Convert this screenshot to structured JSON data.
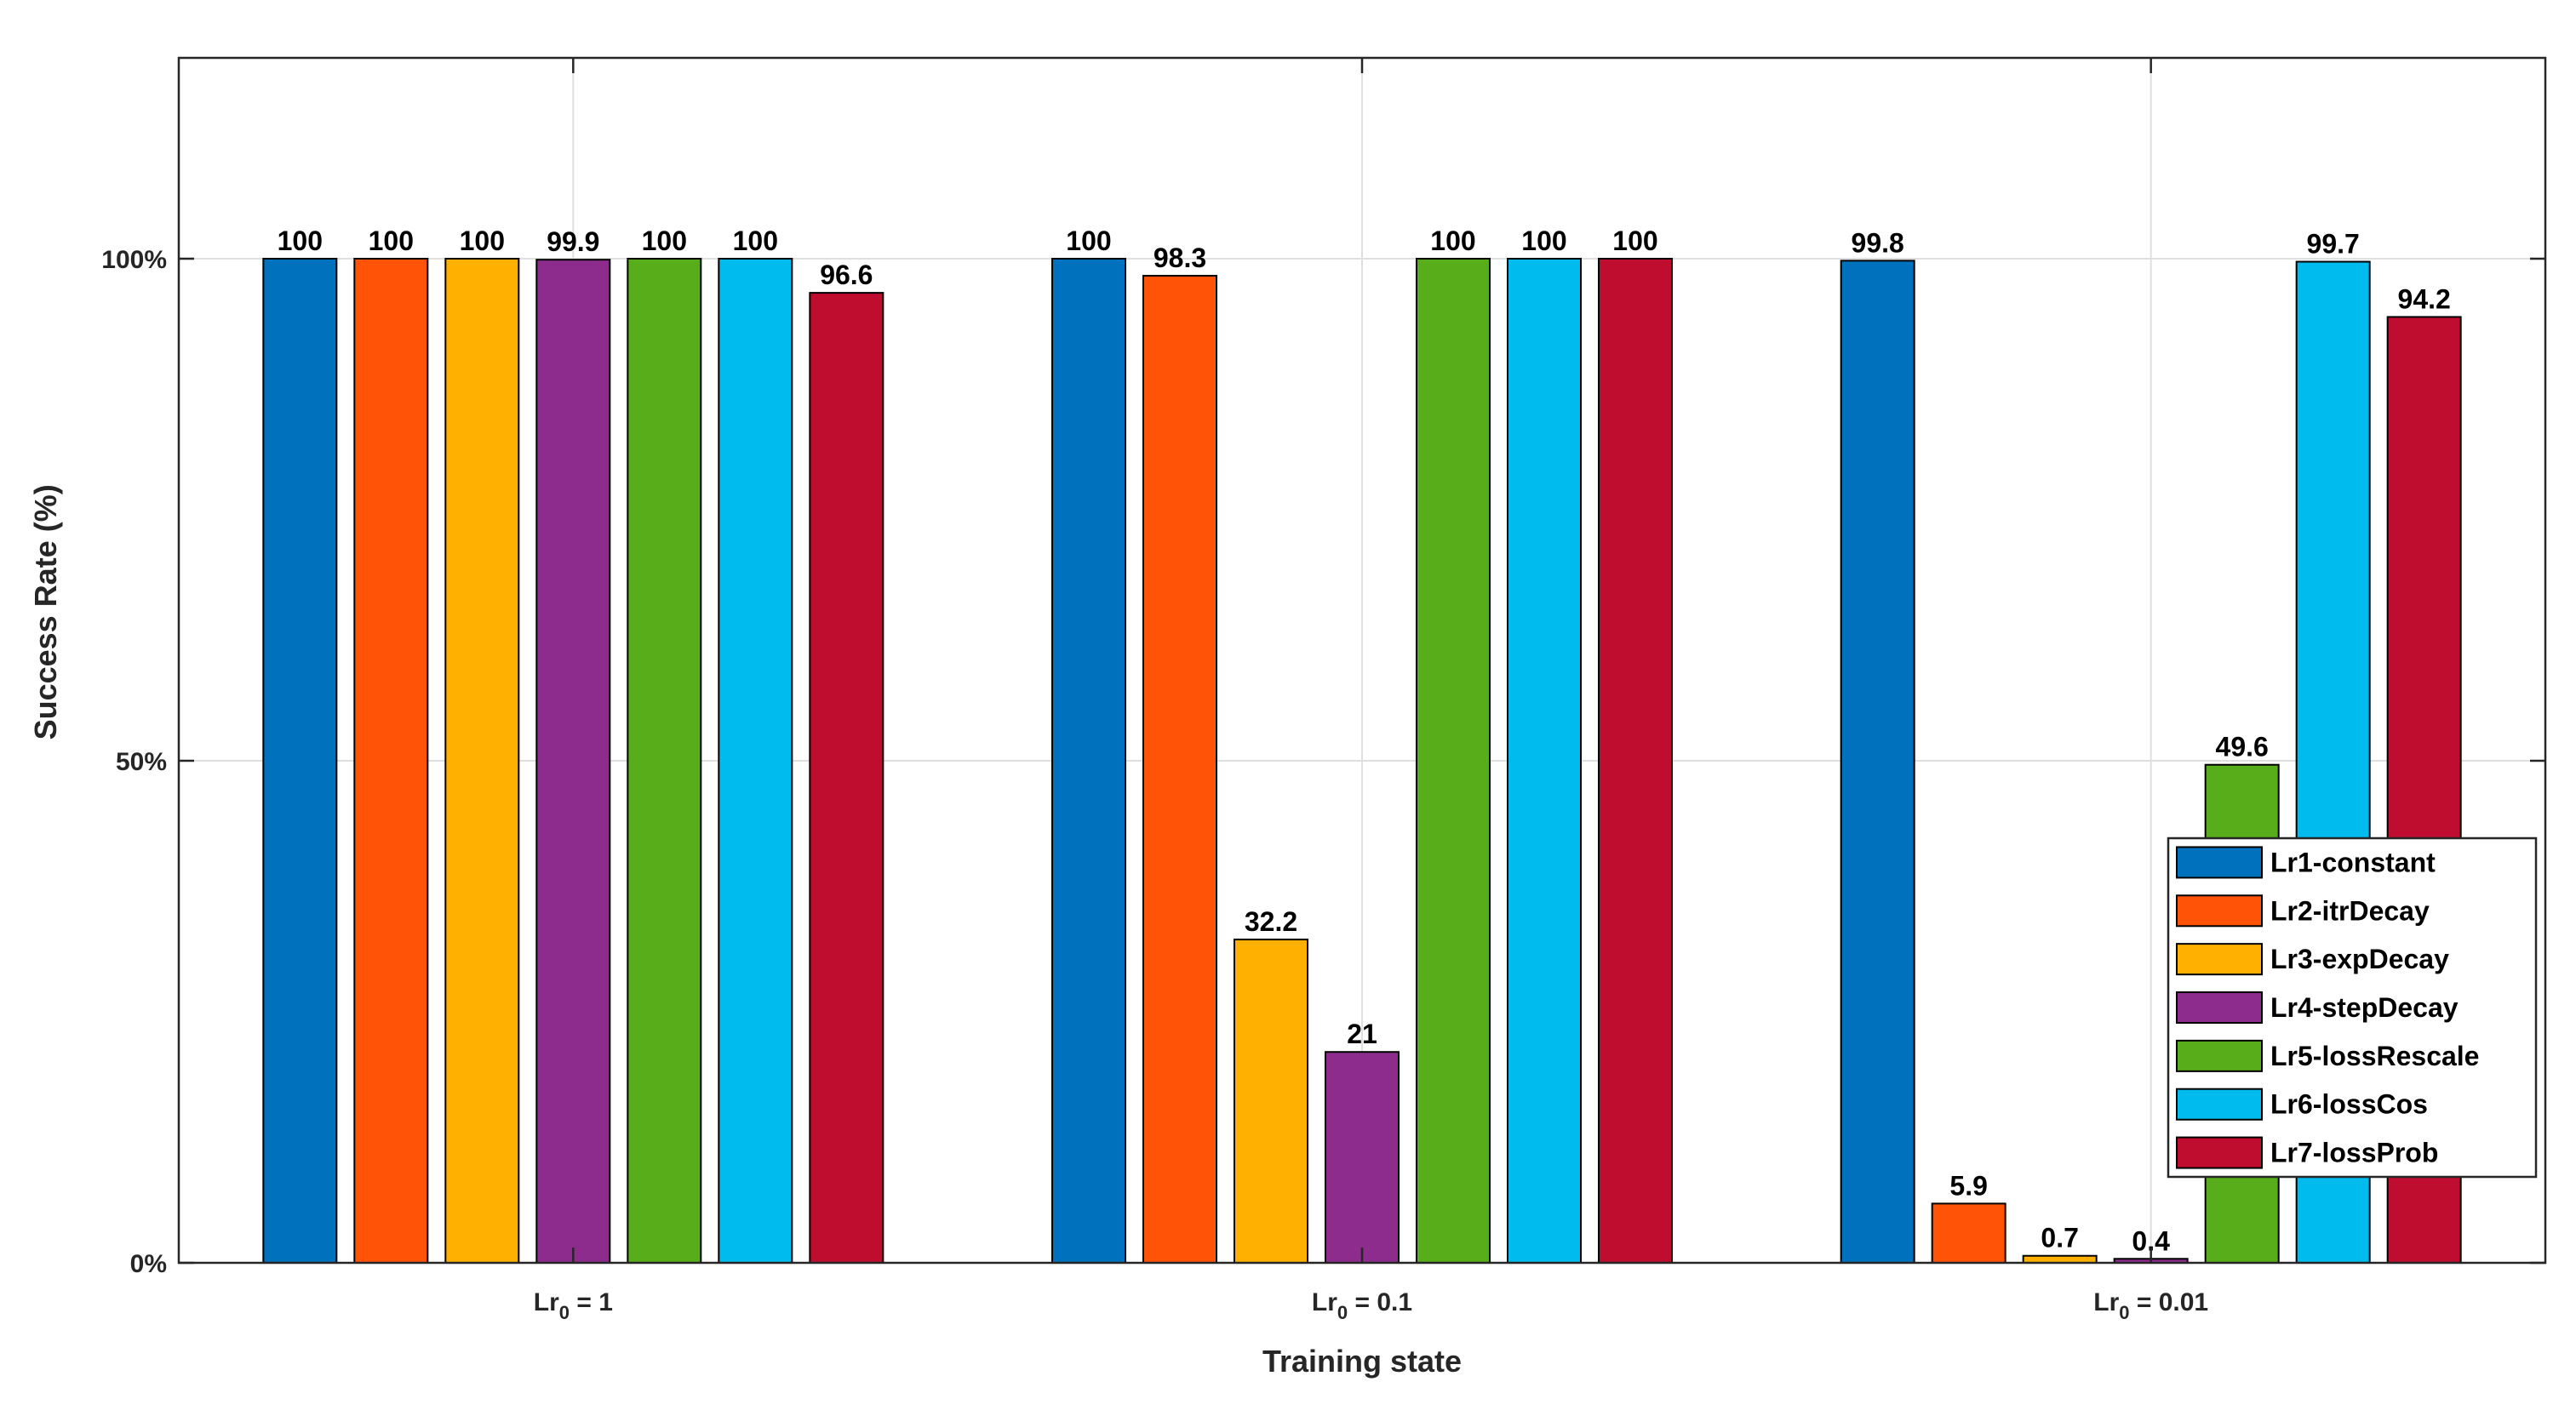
{
  "chart_data": {
    "type": "bar",
    "xlabel": "Training state",
    "ylabel": "Success Rate (%)",
    "ylim": [
      0,
      120
    ],
    "grid": true,
    "legend_position": "bottom-right",
    "yticks": [
      {
        "value": 0,
        "label": "0%"
      },
      {
        "value": 50,
        "label": "50%"
      },
      {
        "value": 100,
        "label": "100%"
      }
    ],
    "categories": [
      {
        "base": "Lr",
        "sub": "0",
        "rest": " = 1"
      },
      {
        "base": "Lr",
        "sub": "0",
        "rest": " = 0.1"
      },
      {
        "base": "Lr",
        "sub": "0",
        "rest": " = 0.01"
      }
    ],
    "series": [
      {
        "name": "Lr1-constant",
        "color": "#0072BD",
        "values": [
          100,
          100,
          99.8
        ],
        "labels": [
          "100",
          "100",
          "99.8"
        ]
      },
      {
        "name": "Lr2-itrDecay",
        "color": "#FF5308",
        "values": [
          100,
          98.3,
          5.9
        ],
        "labels": [
          "100",
          "98.3",
          "5.9"
        ]
      },
      {
        "name": "Lr3-expDecay",
        "color": "#FFB000",
        "values": [
          100,
          32.2,
          0.7
        ],
        "labels": [
          "100",
          "32.2",
          "0.7"
        ]
      },
      {
        "name": "Lr4-stepDecay",
        "color": "#8E2C8E",
        "values": [
          99.9,
          21,
          0.4
        ],
        "labels": [
          "99.9",
          "21",
          "0.4"
        ]
      },
      {
        "name": "Lr5-lossRescale",
        "color": "#58AE1A",
        "values": [
          100,
          100,
          49.6
        ],
        "labels": [
          "100",
          "100",
          "49.6"
        ]
      },
      {
        "name": "Lr6-lossCos",
        "color": "#00BCEE",
        "values": [
          100,
          100,
          99.7
        ],
        "labels": [
          "100",
          "100",
          "99.7"
        ]
      },
      {
        "name": "Lr7-lossProb",
        "color": "#BE0D2F",
        "values": [
          96.6,
          100,
          94.2
        ],
        "labels": [
          "96.6",
          "100",
          "94.2"
        ]
      }
    ]
  }
}
